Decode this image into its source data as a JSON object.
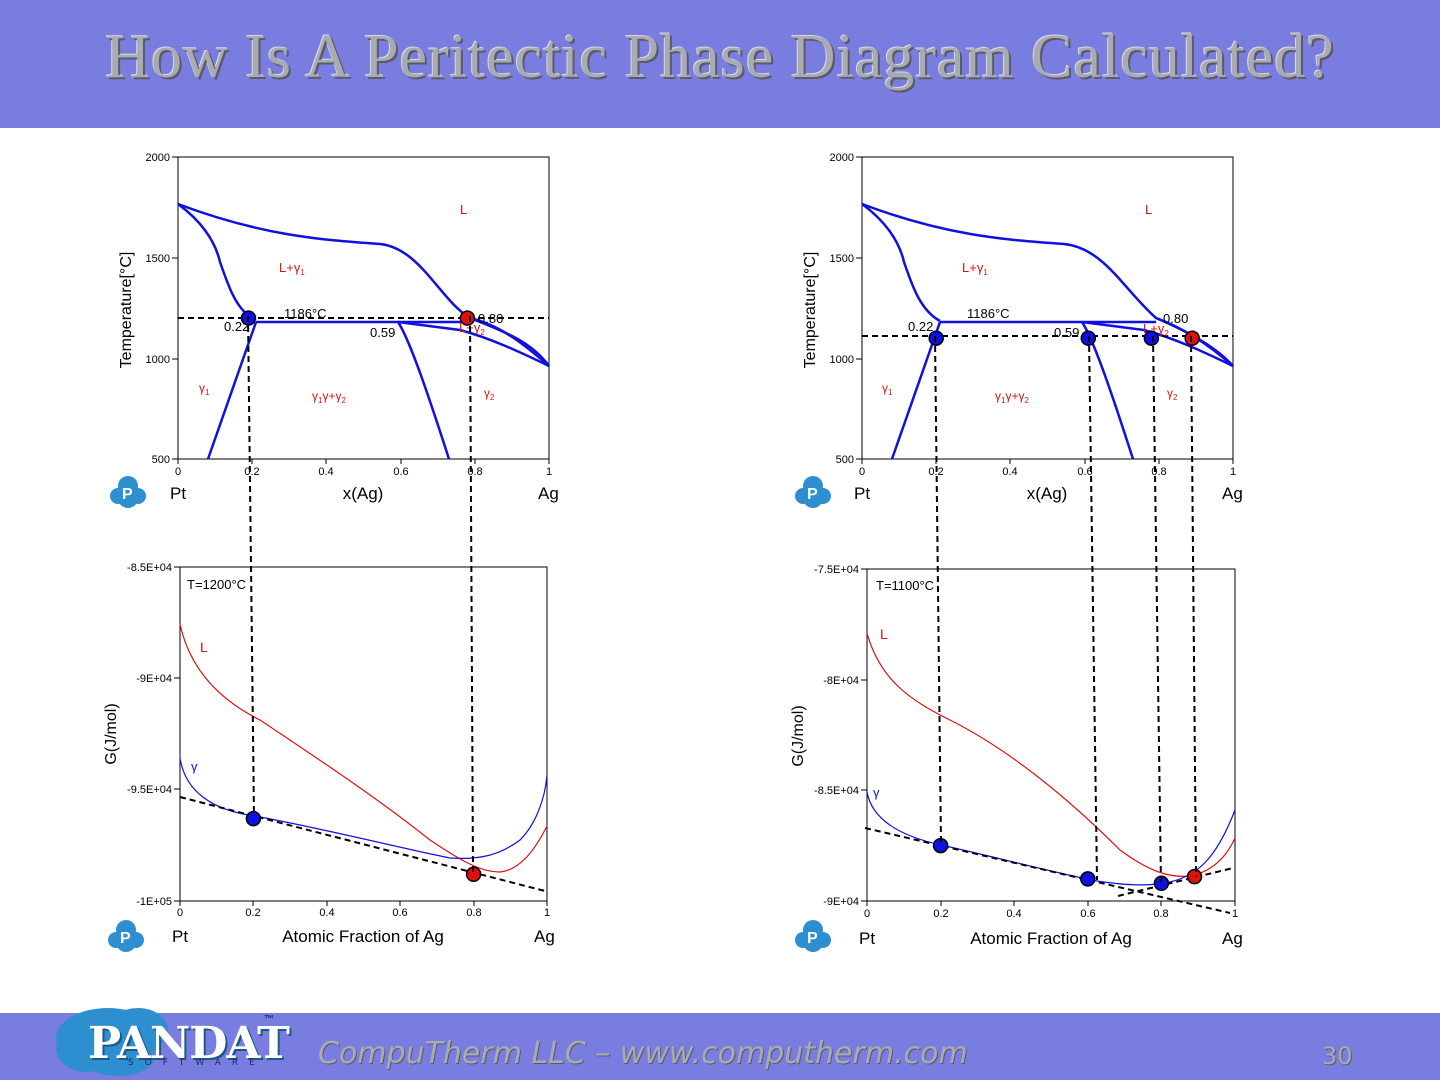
{
  "title": "How Is A Peritectic Phase Diagram Calculated?",
  "footer": {
    "text": "CompuTherm LLC – www.computherm.com",
    "page_number": "30",
    "logo_text": "PANDAT",
    "logo_subtext": "SOFTWARE",
    "logo_tm": "™"
  },
  "colors": {
    "band": "#7a7de0",
    "liquid": "#e01010",
    "gamma": "#1010e0"
  },
  "left": {
    "phase": {
      "ylabel": "Temperature[°C]",
      "xlabel": "x(Ag)",
      "x_left_label": "Pt",
      "x_right_label": "Ag",
      "y_ticks": [
        "2000",
        "1500",
        "1000",
        "500"
      ],
      "x_ticks": [
        "0",
        "0.2",
        "0.4",
        "0.6",
        "0.8",
        "1"
      ],
      "region_labels": {
        "L": "L",
        "L_g1": "L+γ",
        "g1": "γ",
        "g1_g2": "γ+γ",
        "L_g2": "L+γ",
        "g2": "γ",
        "sub1": "1",
        "sub2": "2"
      },
      "annotations": {
        "temp": "1186°C",
        "a": "0.22",
        "b": "0.59",
        "c": "0.80"
      },
      "isotherm_T": 1200,
      "points": [
        {
          "x": 0.19,
          "color": "blue"
        },
        {
          "x": 0.78,
          "color": "red"
        }
      ]
    },
    "gibbs": {
      "ylabel": "G(J/mol)",
      "xlabel": "Atomic Fraction of Ag",
      "x_left_label": "Pt",
      "x_right_label": "Ag",
      "y_ticks": [
        "-8.5E+04",
        "-9E+04",
        "-9.5E+04",
        "-1E+05"
      ],
      "x_ticks": [
        "0",
        "0.2",
        "0.4",
        "0.6",
        "0.8",
        "1"
      ],
      "temperature_label": "T=1200°C",
      "curve_labels": {
        "L": "L",
        "gamma": "γ"
      },
      "points": [
        {
          "x": 0.2,
          "G": -96300,
          "color": "blue"
        },
        {
          "x": 0.8,
          "G": -98800,
          "color": "red"
        }
      ]
    }
  },
  "right": {
    "phase": {
      "ylabel": "Temperature[°C]",
      "xlabel": "x(Ag)",
      "x_left_label": "Pt",
      "x_right_label": "Ag",
      "y_ticks": [
        "2000",
        "1500",
        "1000",
        "500"
      ],
      "x_ticks": [
        "0",
        "0.2",
        "0.4",
        "0.6",
        "0.8",
        "1"
      ],
      "region_labels": {
        "L": "L",
        "L_g1": "L+γ",
        "g1": "γ",
        "g1_g2": "γ+γ",
        "L_g2": "L+γ",
        "g2": "γ",
        "sub1": "1",
        "sub2": "2"
      },
      "annotations": {
        "temp": "1186°C",
        "a": "0.22",
        "b": "0.59",
        "c": "0.80"
      },
      "isotherm_T": 1100,
      "points": [
        {
          "x": 0.2,
          "color": "blue"
        },
        {
          "x": 0.61,
          "color": "blue"
        },
        {
          "x": 0.78,
          "color": "blue"
        },
        {
          "x": 0.89,
          "color": "red"
        }
      ]
    },
    "gibbs": {
      "ylabel": "G(J/mol)",
      "xlabel": "Atomic Fraction of Ag",
      "x_left_label": "Pt",
      "x_right_label": "Ag",
      "y_ticks": [
        "-7.5E+04",
        "-8E+04",
        "-8.5E+04",
        "-9E+04"
      ],
      "x_ticks": [
        "0",
        "0.2",
        "0.4",
        "0.6",
        "0.8",
        "1"
      ],
      "temperature_label": "T=1100°C",
      "curve_labels": {
        "L": "L",
        "gamma": "γ"
      },
      "points": [
        {
          "x": 0.2,
          "G": -87500,
          "color": "blue"
        },
        {
          "x": 0.6,
          "G": -89000,
          "color": "blue"
        },
        {
          "x": 0.8,
          "G": -89200,
          "color": "blue"
        },
        {
          "x": 0.89,
          "G": -88900,
          "color": "red"
        }
      ]
    }
  }
}
